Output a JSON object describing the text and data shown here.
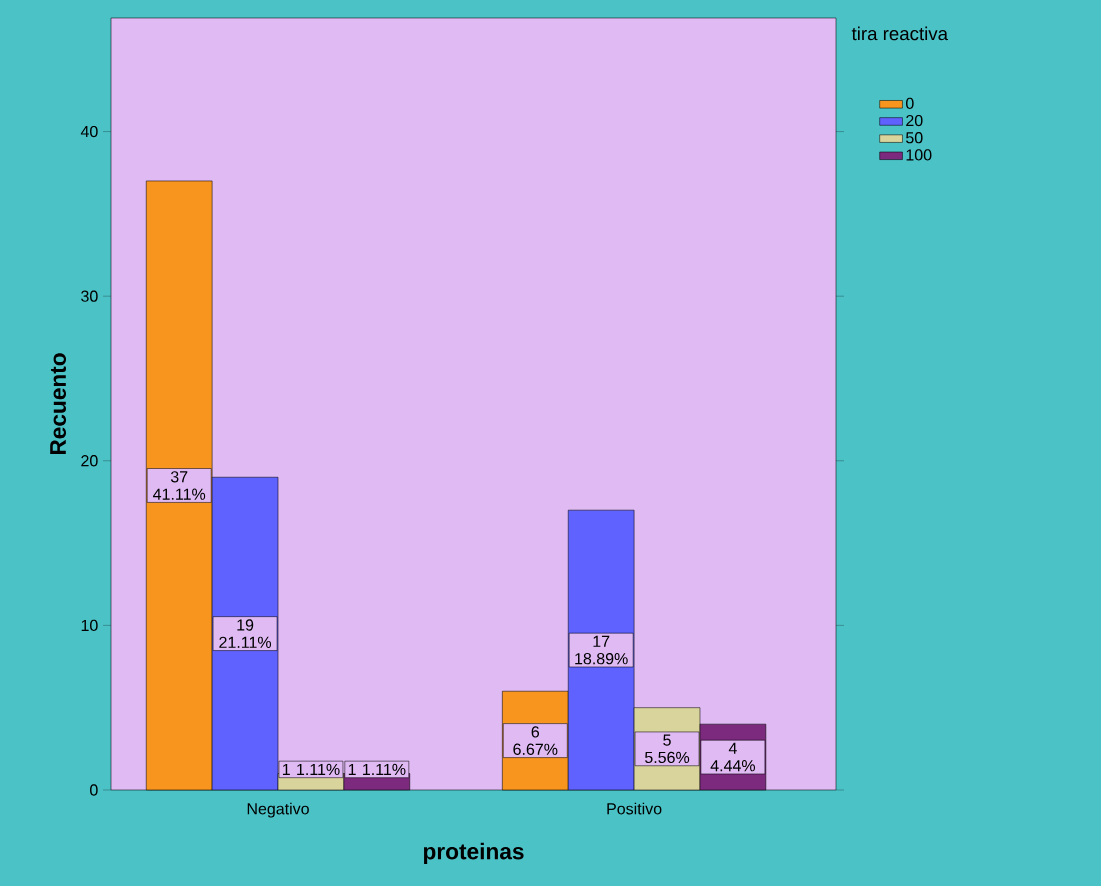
{
  "chart_data": {
    "type": "bar",
    "xlabel": "proteinas",
    "ylabel": "Recuento",
    "legend_title": "tira reactiva",
    "categories": [
      "Negativo",
      "Positivo"
    ],
    "series": [
      {
        "name": "0",
        "color": "#f7951e",
        "values": [
          37,
          6
        ],
        "value_labels": [
          "37 41.11%",
          "6 6.67%"
        ]
      },
      {
        "name": "20",
        "color": "#5f62fe",
        "values": [
          19,
          17
        ],
        "value_labels": [
          "19 21.11%",
          "17 18.89%"
        ]
      },
      {
        "name": "50",
        "color": "#d9d49c",
        "values": [
          1,
          5
        ],
        "value_labels": [
          "1 1.11%",
          "5 5.56%"
        ]
      },
      {
        "name": "100",
        "color": "#7b2a7e",
        "values": [
          1,
          4
        ],
        "value_labels": [
          "1 1.11%",
          "4 4.44%"
        ]
      }
    ],
    "ylim": [
      0,
      46.9
    ],
    "yticks": [
      0,
      10,
      20,
      30,
      40
    ],
    "legend": "top right"
  }
}
